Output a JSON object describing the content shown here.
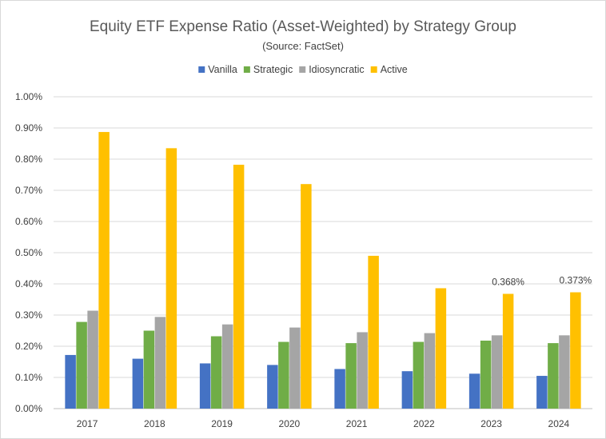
{
  "chart_data": {
    "type": "bar",
    "title": "Equity ETF Expense Ratio (Asset-Weighted) by Strategy Group",
    "subtitle": "(Source: FactSet)",
    "xlabel": "",
    "ylabel": "",
    "categories": [
      "2017",
      "2018",
      "2019",
      "2020",
      "2021",
      "2022",
      "2023",
      "2024"
    ],
    "series": [
      {
        "name": "Vanilla",
        "color": "#4472c4",
        "values": [
          0.172,
          0.16,
          0.145,
          0.14,
          0.127,
          0.12,
          0.112,
          0.105
        ]
      },
      {
        "name": "Strategic",
        "color": "#70ad47",
        "values": [
          0.278,
          0.25,
          0.232,
          0.214,
          0.21,
          0.214,
          0.218,
          0.21
        ]
      },
      {
        "name": "Idiosyncratic",
        "color": "#a5a5a5",
        "values": [
          0.314,
          0.294,
          0.27,
          0.26,
          0.245,
          0.242,
          0.235,
          0.235
        ]
      },
      {
        "name": "Active",
        "color": "#ffc000",
        "values": [
          0.887,
          0.835,
          0.782,
          0.72,
          0.49,
          0.386,
          0.368,
          0.373
        ]
      }
    ],
    "ylim": [
      0,
      1.0
    ],
    "yticks": [
      0,
      0.1,
      0.2,
      0.3,
      0.4,
      0.5,
      0.6,
      0.7,
      0.8,
      0.9,
      1.0
    ],
    "ytick_labels": [
      "0.00%",
      "0.10%",
      "0.20%",
      "0.30%",
      "0.40%",
      "0.50%",
      "0.60%",
      "0.70%",
      "0.80%",
      "0.90%",
      "1.00%"
    ],
    "grid": true,
    "legend_position": "top",
    "data_labels": [
      {
        "series": "Active",
        "category": "2023",
        "text": "0.368%"
      },
      {
        "series": "Active",
        "category": "2024",
        "text": "0.373%"
      }
    ],
    "gridline_color": "#d9d9d9",
    "axis_color": "#bfbfbf"
  }
}
